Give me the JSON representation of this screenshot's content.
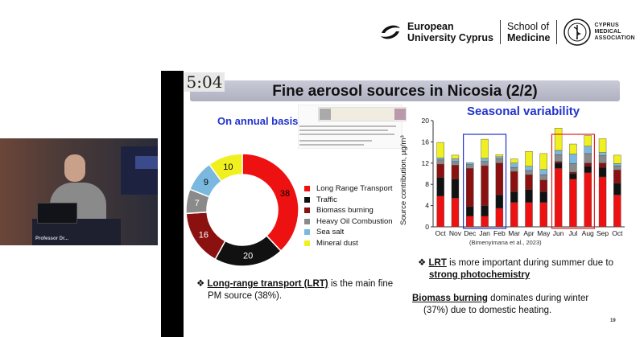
{
  "header": {
    "euc_line1": "European",
    "euc_line2": "University Cyprus",
    "som_line1": "School of",
    "som_line2": "Medicine",
    "cma_line1": "CYPRUS",
    "cma_line2": "MEDICAL",
    "cma_line3": "ASSOCIATION"
  },
  "video": {
    "podium_label": "Professor Dr..."
  },
  "slide": {
    "timer": "5:04",
    "title": "Fine aerosol sources in Nicosia (2/2)",
    "annual_title": "On annual basis",
    "seasonal_title": "Seasonal variability",
    "citation": "(Bimenyimana et al., 2023)",
    "bullet1_a": "Long-range transport (LRT)",
    "bullet1_b": " is the main fine",
    "bullet1_c": "PM source (38%).",
    "bullet2_a": "LRT",
    "bullet2_b": " is more important during summer due to",
    "bullet2_c": "strong photochemistry",
    "bullet3_a": "Biomass burning",
    "bullet3_b": " dominates during winter",
    "bullet3_c": "(37%) due to domestic heating.",
    "slide_number": "19",
    "bullet_glyph": "❖"
  },
  "colors": {
    "lrt": "#ee1111",
    "traffic": "#111111",
    "biomass": "#8b1010",
    "heavy_oil": "#8a8a8a",
    "sea_salt": "#7ab8e0",
    "mineral_dust": "#f0f020",
    "title_blue": "#2233cc",
    "winter_box": "#2233cc",
    "summer_box": "#dd2222"
  },
  "chart_data": [
    {
      "type": "pie",
      "title": "On annual basis",
      "labels": [
        "Long Range Transport",
        "Traffic",
        "Biomass burning",
        "Heavy Oil Combustion",
        "Sea salt",
        "Mineral dust"
      ],
      "values": [
        38,
        20,
        16,
        7,
        9,
        10
      ],
      "donut": true,
      "legend": "right"
    },
    {
      "type": "bar",
      "stacked": true,
      "title": "Seasonal variability",
      "ylabel": "Source contribution, µg/m³",
      "ylim": [
        0,
        20
      ],
      "yticks": [
        0,
        4,
        8,
        12,
        16,
        20
      ],
      "categories": [
        "Oct",
        "Nov",
        "Dec",
        "Jan",
        "Feb",
        "Mar",
        "Apr",
        "May",
        "Jun",
        "Jul",
        "Aug",
        "Sep",
        "Oct"
      ],
      "series": [
        {
          "name": "Long Range Transport",
          "values": [
            5.8,
            5.4,
            2.0,
            2.0,
            3.5,
            4.6,
            4.6,
            4.6,
            11.0,
            9.0,
            10.2,
            9.4,
            6.0
          ]
        },
        {
          "name": "Traffic",
          "values": [
            3.5,
            3.6,
            1.8,
            2.0,
            2.5,
            2.0,
            2.4,
            2.0,
            1.0,
            1.0,
            1.2,
            1.8,
            2.2
          ]
        },
        {
          "name": "Biomass burning",
          "values": [
            2.5,
            2.6,
            7.2,
            7.5,
            6.0,
            3.8,
            2.8,
            2.2,
            0.3,
            0.3,
            0.6,
            0.8,
            2.5
          ]
        },
        {
          "name": "Heavy Oil Combustion",
          "values": [
            0.8,
            0.7,
            0.7,
            0.8,
            0.8,
            0.8,
            0.8,
            1.0,
            1.3,
            1.6,
            1.8,
            1.4,
            0.8
          ]
        },
        {
          "name": "Sea salt",
          "values": [
            0.4,
            0.5,
            0.4,
            0.6,
            0.4,
            0.8,
            0.8,
            1.0,
            0.8,
            1.8,
            1.4,
            0.6,
            0.4
          ]
        },
        {
          "name": "Mineral dust",
          "values": [
            2.9,
            0.7,
            0.0,
            3.6,
            0.4,
            0.8,
            2.8,
            3.0,
            4.2,
            1.9,
            2.0,
            2.6,
            1.6
          ]
        }
      ],
      "highlight_boxes": [
        {
          "from": "Dec",
          "to": "Feb",
          "color": "blue"
        },
        {
          "from": "Jun",
          "to": "Aug",
          "color": "red"
        }
      ],
      "grid": false,
      "legend": "none"
    }
  ]
}
